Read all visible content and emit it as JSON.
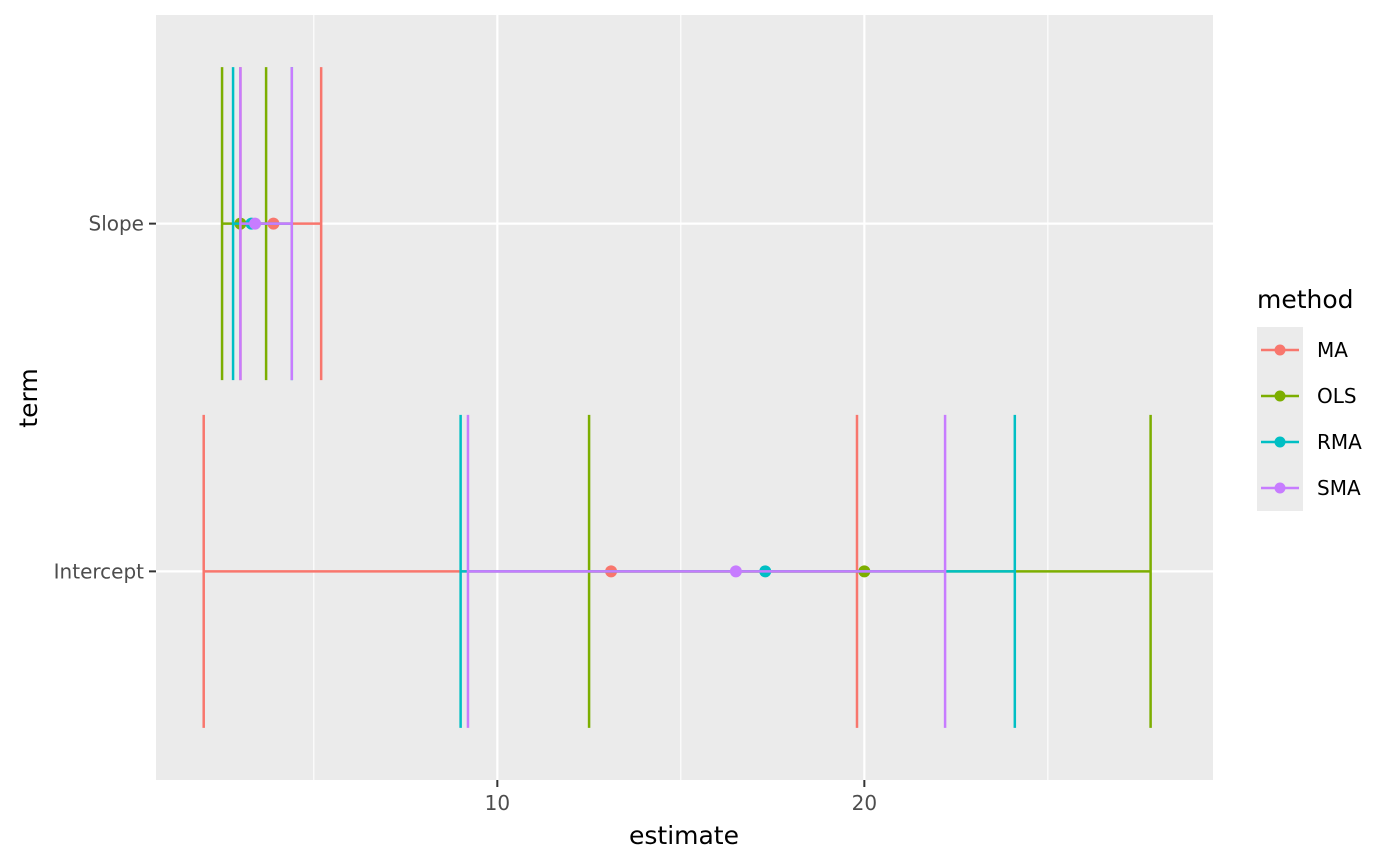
{
  "chart_data": {
    "type": "errorbar",
    "xlabel": "estimate",
    "ylabel": "term",
    "xlim": [
      0.7,
      29.5
    ],
    "x_ticks": [
      10,
      20
    ],
    "x_ticks_text": [
      "10",
      "20"
    ],
    "x_minor_ticks": [
      5,
      15,
      25
    ],
    "categories": [
      "Intercept",
      "Slope"
    ],
    "grid": true,
    "legend": {
      "title": "method",
      "position": "right"
    },
    "series": [
      {
        "name": "MA",
        "color": "#F8766D",
        "points": [
          {
            "term": "Intercept",
            "estimate": 13.1,
            "low": 2.0,
            "high": 19.8
          },
          {
            "term": "Slope",
            "estimate": 3.9,
            "low": 3.0,
            "high": 5.2
          }
        ]
      },
      {
        "name": "OLS",
        "color": "#7CAE00",
        "points": [
          {
            "term": "Intercept",
            "estimate": 20.0,
            "low": 12.5,
            "high": 27.8
          },
          {
            "term": "Slope",
            "estimate": 3.0,
            "low": 2.5,
            "high": 3.7
          }
        ]
      },
      {
        "name": "RMA",
        "color": "#00BFC4",
        "points": [
          {
            "term": "Intercept",
            "estimate": 17.3,
            "low": 9.0,
            "high": 24.1
          },
          {
            "term": "Slope",
            "estimate": 3.3,
            "low": 2.8,
            "high": 4.4
          }
        ]
      },
      {
        "name": "SMA",
        "color": "#C77CFF",
        "points": [
          {
            "term": "Intercept",
            "estimate": 16.5,
            "low": 9.2,
            "high": 22.2
          },
          {
            "term": "Slope",
            "estimate": 3.4,
            "low": 3.0,
            "high": 4.4
          }
        ]
      }
    ]
  }
}
